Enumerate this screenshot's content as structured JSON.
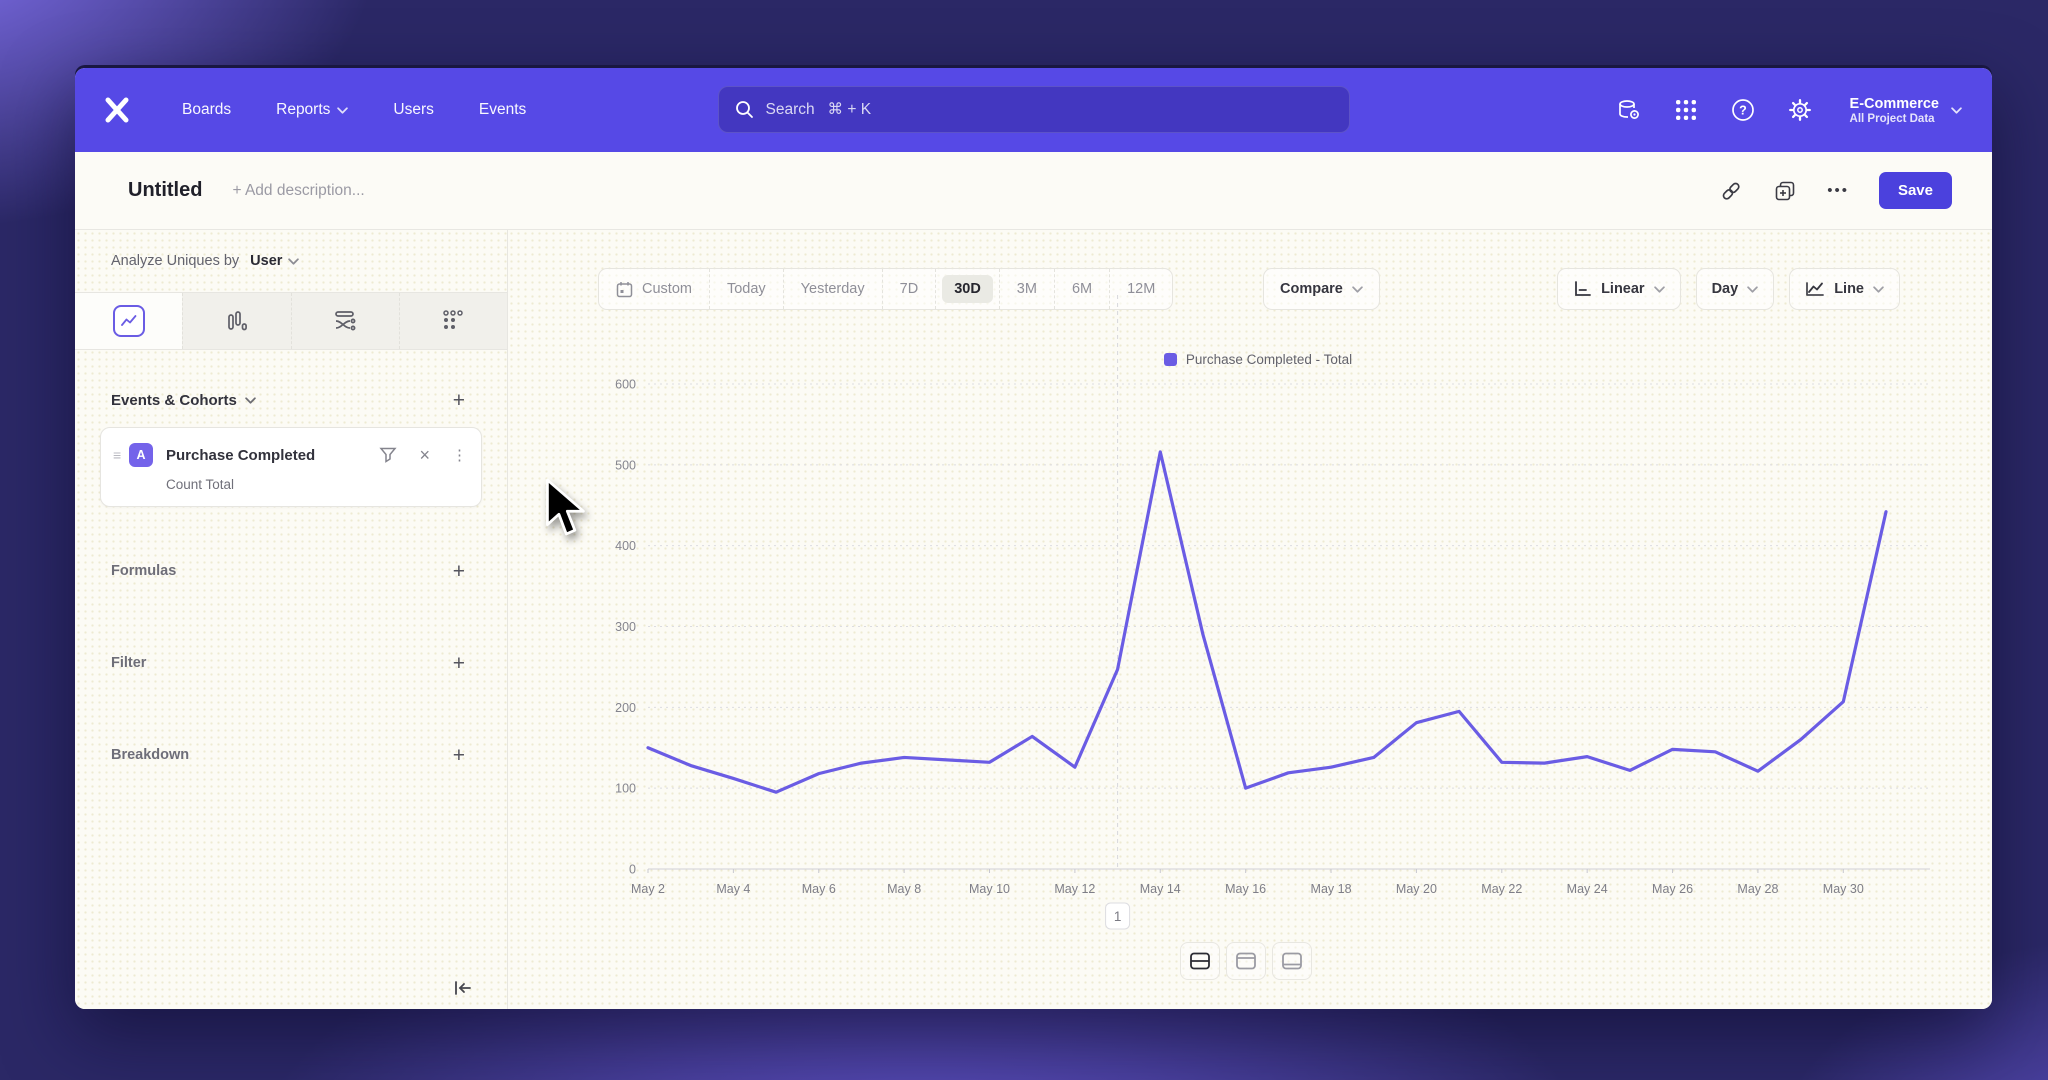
{
  "nav": {
    "items": [
      {
        "label": "Boards"
      },
      {
        "label": "Reports"
      },
      {
        "label": "Users"
      },
      {
        "label": "Events"
      }
    ],
    "search": {
      "placeholder": "Search   ⌘ + K"
    },
    "project_name": "E-Commerce",
    "project_subtitle": "All Project Data"
  },
  "report_header": {
    "title": "Untitled",
    "description_placeholder": "+ Add description...",
    "more_label": "•••",
    "save_label": "Save"
  },
  "sidebar": {
    "analyze_label": "Analyze Uniques by",
    "analyze_value": "User",
    "events_title": "Events & Cohorts",
    "add_symbol": "+",
    "event_card": {
      "drag_handle": "≡",
      "badge": "A",
      "name": "Purchase Completed",
      "close": "×",
      "kebab": "⋮",
      "metric": "Count Total"
    },
    "groups": [
      {
        "label": "Formulas"
      },
      {
        "label": "Filter"
      },
      {
        "label": "Breakdown"
      }
    ]
  },
  "toolbar": {
    "ranges": [
      "Custom",
      "Today",
      "Yesterday",
      "7D",
      "30D",
      "3M",
      "6M",
      "12M"
    ],
    "active_range": "30D",
    "compare_label": "Compare",
    "scale_label": "Linear",
    "interval_label": "Day",
    "chart_type_label": "Line"
  },
  "chart_data": {
    "type": "line",
    "legend": [
      {
        "label": "Purchase Completed - Total",
        "color": "#6a5ce4"
      }
    ],
    "categories": [
      "May 2",
      "May 3",
      "May 4",
      "May 5",
      "May 6",
      "May 7",
      "May 8",
      "May 9",
      "May 10",
      "May 11",
      "May 12",
      "May 13",
      "May 14",
      "May 15",
      "May 16",
      "May 17",
      "May 18",
      "May 19",
      "May 20",
      "May 21",
      "May 22",
      "May 23",
      "May 24",
      "May 25",
      "May 26",
      "May 27",
      "May 28",
      "May 29",
      "May 30",
      "May 31"
    ],
    "values": [
      150,
      128,
      112,
      95,
      118,
      131,
      138,
      135,
      132,
      164,
      126,
      247,
      516,
      290,
      100,
      119,
      126,
      138,
      181,
      195,
      132,
      131,
      139,
      122,
      148,
      145,
      121,
      160,
      207,
      442
    ],
    "ylim": [
      0,
      600
    ],
    "yticks": [
      0,
      100,
      200,
      300,
      400,
      500,
      600
    ],
    "x_tick_every": 2,
    "line_color": "#6a5ce4",
    "grid": true,
    "annotation": {
      "label": "1",
      "category": "May 13"
    }
  },
  "colors": {
    "header_purple": "#5649e6",
    "accent": "#4b41dd",
    "line": "#6a5ce4"
  }
}
